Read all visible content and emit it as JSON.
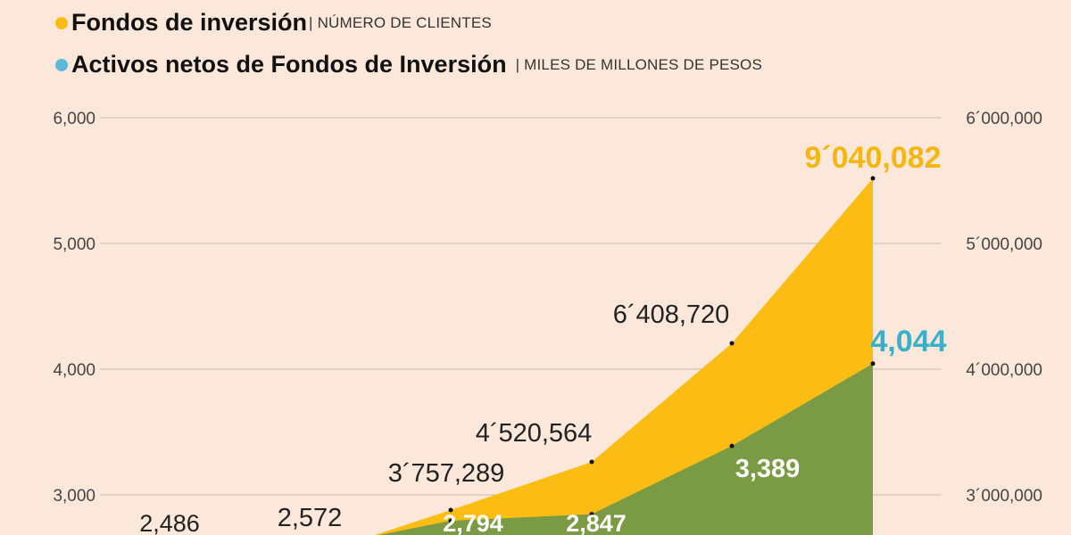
{
  "legend": [
    {
      "title": "Fondos de inversión",
      "subtitle": "| NÚMERO DE CLIENTES",
      "color": "#fbbd14"
    },
    {
      "title": "Activos netos de Fondos de Inversión",
      "subtitle": "| MILES DE MILLONES DE PESOS",
      "color": "#5bb8d6"
    }
  ],
  "chart_data": {
    "type": "area",
    "left_axis": {
      "ticks": [
        "3,000",
        "4,000",
        "5,000",
        "6,000"
      ],
      "values": [
        3000,
        4000,
        5000,
        6000
      ]
    },
    "right_axis": {
      "ticks": [
        "3´000,000",
        "4´000,000",
        "5´000,000",
        "6´000,000"
      ],
      "values": [
        3000000,
        4000000,
        5000000,
        6000000
      ]
    },
    "grid": true,
    "series": [
      {
        "name": "Fondos de inversión",
        "axis": "right",
        "color": "#fbbd14",
        "labels": [
          "3´757,289",
          "4´520,564",
          "6´408,720",
          "9´040,082"
        ],
        "values": [
          3757289,
          4520564,
          6408720,
          9040082
        ]
      },
      {
        "name": "Activos netos de Fondos de Inversión",
        "axis": "left",
        "color": "#7a9a44",
        "labels": [
          "2,486",
          "2,572",
          "2,794",
          "2,847",
          "3,389",
          "4,044"
        ],
        "values": [
          2486,
          2572,
          2794,
          2847,
          3389,
          4044
        ]
      }
    ],
    "highlight_colors": {
      "clients_last": "#f5b60f",
      "assets_last": "#3ab0c8"
    }
  }
}
